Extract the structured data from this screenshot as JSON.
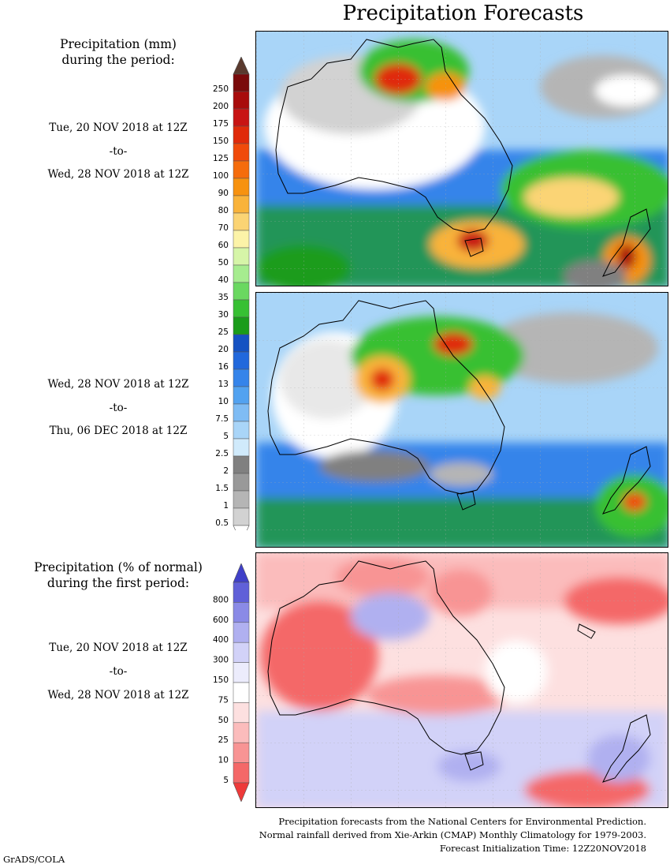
{
  "title": "Precipitation Forecasts",
  "precip_section": {
    "heading_line1": "Precipitation (mm)",
    "heading_line2": "during the period:",
    "period1": {
      "start": "Tue, 20 NOV 2018 at 12Z",
      "sep": "-to-",
      "end": "Wed, 28 NOV 2018 at 12Z"
    },
    "period2": {
      "start": "Wed, 28 NOV 2018 at 12Z",
      "sep": "-to-",
      "end": "Thu, 06 DEC 2018 at 12Z"
    }
  },
  "precip_scale": {
    "labels": [
      "250",
      "200",
      "175",
      "150",
      "125",
      "100",
      "90",
      "80",
      "70",
      "60",
      "50",
      "40",
      "35",
      "30",
      "25",
      "20",
      "16",
      "13",
      "10",
      "7.5",
      "5",
      "2.5",
      "2",
      "1.5",
      "1",
      "0.5"
    ],
    "colors": [
      "#7a0a0a",
      "#a80c0c",
      "#c81414",
      "#e02a0a",
      "#f04a0a",
      "#f56c0c",
      "#f7920f",
      "#f9b33a",
      "#fbd474",
      "#fcf3a8",
      "#d6f5a8",
      "#a6ec8f",
      "#6ad860",
      "#37c033",
      "#1a9c1a",
      "#1552c2",
      "#2168dc",
      "#3584ea",
      "#52a2f0",
      "#7fbcf4",
      "#a9d5f8",
      "#d0eafb",
      "#808080",
      "#999999",
      "#b5b5b5",
      "#d2d2d2"
    ],
    "top_arrow_color": "#5a3a2e",
    "bottom_arrow_color": "#ffffff"
  },
  "anomaly_section": {
    "heading_line1": "Precipitation (% of normal)",
    "heading_line2": "during the first period:",
    "period": {
      "start": "Tue, 20 NOV 2018 at 12Z",
      "sep": "-to-",
      "end": "Wed, 28 NOV 2018 at 12Z"
    }
  },
  "anomaly_scale": {
    "labels": [
      "800",
      "600",
      "400",
      "300",
      "150",
      "75",
      "50",
      "25",
      "10",
      "5"
    ],
    "colors": [
      "#6060d8",
      "#8a8ae6",
      "#b0b0f0",
      "#d2d2f8",
      "#ececfc",
      "#ffffff",
      "#fde0e0",
      "#fbbcbc",
      "#f89494",
      "#f46868"
    ],
    "top_arrow_color": "#4040c8",
    "bottom_arrow_color": "#ee3a3a"
  },
  "footer": {
    "line1": "Precipitation forecasts from the National Centers for Environmental Prediction.",
    "line2": "Normal rainfall derived from Xie-Arkin (CMAP) Monthly Climatology for 1979-2003.",
    "line3": "Forecast Initialization Time: 12Z20NOV2018"
  },
  "credit": "GrADS/COLA"
}
